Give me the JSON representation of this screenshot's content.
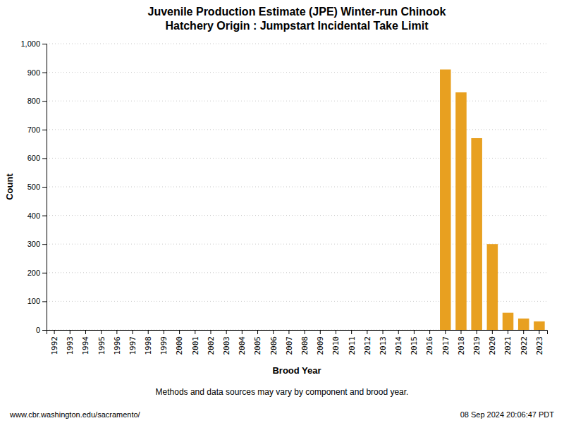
{
  "chart_data": {
    "type": "bar",
    "title": "Juvenile Production Estimate (JPE) Winter-run Chinook",
    "subtitle": "Hatchery Origin : Jumpstart Incidental Take Limit",
    "x_label": "Brood Year",
    "y_label": "Count",
    "categories": [
      "1992",
      "1993",
      "1994",
      "1995",
      "1996",
      "1997",
      "1998",
      "1999",
      "2000",
      "2001",
      "2002",
      "2003",
      "2004",
      "2005",
      "2006",
      "2007",
      "2008",
      "2009",
      "2010",
      "2011",
      "2012",
      "2013",
      "2014",
      "2015",
      "2016",
      "2017",
      "2018",
      "2019",
      "2020",
      "2021",
      "2022",
      "2023"
    ],
    "values": [
      0,
      0,
      0,
      0,
      0,
      0,
      0,
      0,
      0,
      0,
      0,
      0,
      0,
      0,
      0,
      0,
      0,
      0,
      0,
      0,
      0,
      0,
      0,
      0,
      0,
      910,
      830,
      670,
      300,
      60,
      40,
      30
    ],
    "color": "#E8A020",
    "ylim": [
      0,
      1000
    ],
    "yticks": [
      0,
      100,
      200,
      300,
      400,
      500,
      600,
      700,
      800,
      900,
      {
        "value": 1000,
        "label": "1,000"
      }
    ],
    "grid": true,
    "annotations": [
      "Methods and data sources may vary by component and brood year.",
      "www.cbr.washington.edu/sacramento/",
      "08 Sep 2024 20:06:47 PDT"
    ]
  }
}
